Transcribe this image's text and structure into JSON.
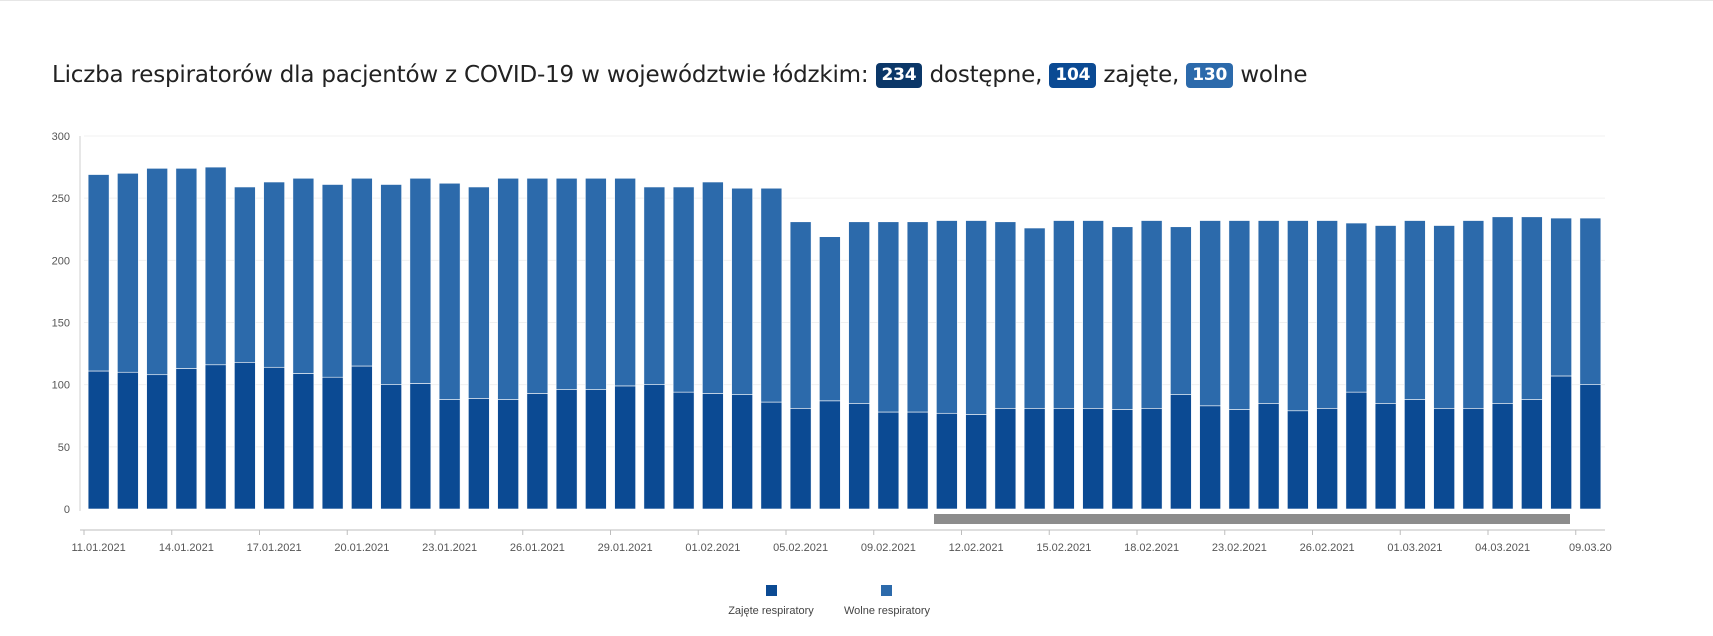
{
  "headline": {
    "text_before": "Liczba respiratorów dla pacjentów z COVID-19 w województwie łódzkim:",
    "available_value": "234",
    "available_label": "dostępne,",
    "occupied_value": "104",
    "occupied_label": "zajęte,",
    "free_value": "130",
    "free_label": "wolne"
  },
  "colors": {
    "occupied": "#0b4a93",
    "free": "#2c6aab",
    "badge_available": "#0b3768",
    "badge_occupied": "#0b4a93",
    "badge_free": "#2c6aab",
    "scrollbar": "#8c8c8c"
  },
  "chart_data": {
    "type": "bar",
    "stacked": true,
    "ylim": [
      0,
      300
    ],
    "yticks": [
      0,
      50,
      100,
      150,
      200,
      250,
      300
    ],
    "x_tick_labels": [
      "11.01.2021",
      "14.01.2021",
      "17.01.2021",
      "20.01.2021",
      "23.01.2021",
      "26.01.2021",
      "29.01.2021",
      "01.02.2021",
      "05.02.2021",
      "09.02.2021",
      "12.02.2021",
      "15.02.2021",
      "18.02.2021",
      "23.02.2021",
      "26.02.2021",
      "01.03.2021",
      "04.03.2021",
      "09.03.20"
    ],
    "x_tick_bar_index": [
      0,
      3,
      6,
      9,
      12,
      15,
      18,
      21,
      24,
      27,
      30,
      33,
      36,
      39,
      42,
      45,
      48,
      51
    ],
    "series": [
      {
        "name": "Zajęte respiratory",
        "values": [
          111,
          110,
          108,
          113,
          116,
          118,
          114,
          109,
          106,
          115,
          100,
          101,
          88,
          89,
          88,
          93,
          96,
          96,
          99,
          100,
          94,
          93,
          92,
          86,
          81,
          87,
          85,
          78,
          78,
          77,
          76,
          81,
          81,
          81,
          81,
          80,
          81,
          92,
          83,
          80,
          85,
          79,
          81,
          94,
          85,
          88,
          81,
          81,
          85,
          88,
          107,
          100
        ]
      },
      {
        "name": "Wolne respiratory",
        "values": [
          158,
          160,
          166,
          161,
          159,
          141,
          149,
          157,
          155,
          151,
          161,
          165,
          174,
          170,
          178,
          173,
          170,
          170,
          167,
          159,
          165,
          170,
          166,
          172,
          150,
          132,
          146,
          153,
          153,
          155,
          156,
          150,
          145,
          151,
          151,
          147,
          151,
          135,
          149,
          152,
          147,
          153,
          151,
          136,
          143,
          144,
          147,
          151,
          150,
          147,
          127,
          134
        ]
      }
    ],
    "legend": [
      "Zajęte respiratory",
      "Wolne respiratory"
    ],
    "legend_position": "bottom-center",
    "grid": true
  }
}
